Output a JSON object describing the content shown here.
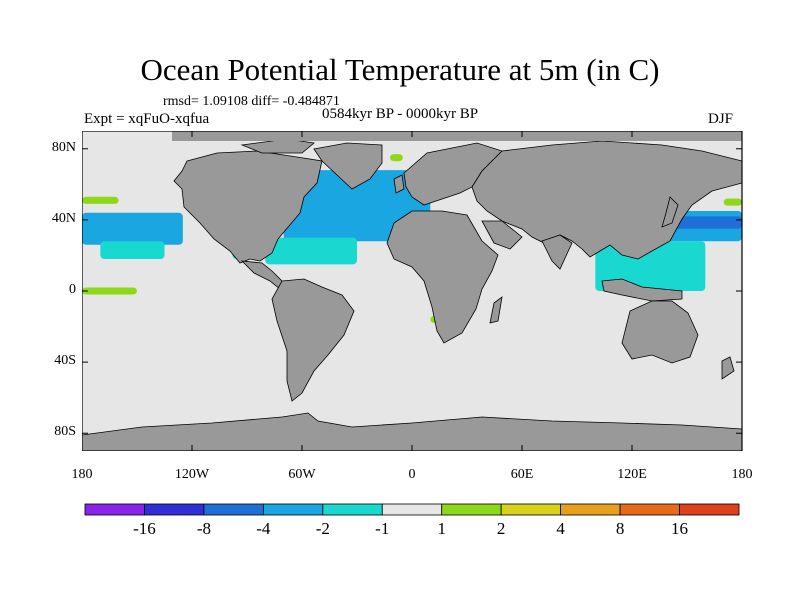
{
  "title": "Ocean Potential Temperature at 5m (in C)",
  "stats": "rmsd= 1.09108 diff= -0.484871",
  "experiment": "Expt = xqFuO-xqfua",
  "period": "0584kyr BP - 0000kyr BP",
  "season": "DJF",
  "chart_data": {
    "type": "heatmap",
    "title": "Ocean Potential Temperature at 5m (in C)",
    "projection": "cylindrical-equidistant",
    "xlim": [
      -180,
      180
    ],
    "ylim": [
      -90,
      90
    ],
    "x_ticks": [
      {
        "lon": -180,
        "label": "180"
      },
      {
        "lon": -120,
        "label": "120W"
      },
      {
        "lon": -60,
        "label": "60W"
      },
      {
        "lon": 0,
        "label": "0"
      },
      {
        "lon": 60,
        "label": "60E"
      },
      {
        "lon": 120,
        "label": "120E"
      },
      {
        "lon": 180,
        "label": "180"
      }
    ],
    "y_ticks": [
      {
        "lat": 80,
        "label": "80N"
      },
      {
        "lat": 40,
        "label": "40N"
      },
      {
        "lat": 0,
        "label": "0"
      },
      {
        "lat": -40,
        "label": "40S"
      },
      {
        "lat": -80,
        "label": "80S"
      }
    ],
    "colorbar": {
      "levels": [
        "-16",
        "-8",
        "-4",
        "-2",
        "-1",
        "1",
        "2",
        "4",
        "8",
        "16"
      ],
      "colors": [
        "#8a22ee",
        "#2f2fd8",
        "#1f6fd8",
        "#1aa6e0",
        "#18d8d0",
        "#e6e6e6",
        "#8ed81a",
        "#d6d21a",
        "#e6a01a",
        "#e66a1a",
        "#e0401a"
      ]
    },
    "ocean_fill": "#e6e6e6",
    "land_fill": "#999999",
    "anomaly_regions": [
      {
        "name": "north-pacific-cold-west",
        "lon": [
          -180,
          -125
        ],
        "lat": [
          26,
          44
        ],
        "color": "#1aa6e0"
      },
      {
        "name": "north-pacific-cold-east",
        "lon": [
          -170,
          -135
        ],
        "lat": [
          18,
          28
        ],
        "color": "#18d8d0"
      },
      {
        "name": "north-atlantic-cold-core",
        "lon": [
          -75,
          -20
        ],
        "lat": [
          36,
          48
        ],
        "color": "#1f6fd8"
      },
      {
        "name": "north-atlantic-cold",
        "lon": [
          -70,
          10
        ],
        "lat": [
          28,
          68
        ],
        "color": "#1aa6e0"
      },
      {
        "name": "subtropical-atlantic-cool",
        "lon": [
          -80,
          -30
        ],
        "lat": [
          15,
          30
        ],
        "color": "#18d8d0"
      },
      {
        "name": "gulf-of-mexico-cool",
        "lon": [
          -98,
          -80
        ],
        "lat": [
          18,
          30
        ],
        "color": "#18d8d0"
      },
      {
        "name": "kuroshio-cold",
        "lon": [
          125,
          180
        ],
        "lat": [
          28,
          45
        ],
        "color": "#1aa6e0"
      },
      {
        "name": "kuroshio-cold-core",
        "lon": [
          140,
          180
        ],
        "lat": [
          35,
          42
        ],
        "color": "#1f6fd8"
      },
      {
        "name": "west-pacific-cool",
        "lon": [
          100,
          160
        ],
        "lat": [
          0,
          28
        ],
        "color": "#18d8d0"
      },
      {
        "name": "equatorial-pacific-warm",
        "lon": [
          -180,
          -150
        ],
        "lat": [
          -2,
          2
        ],
        "color": "#8ed81a"
      },
      {
        "name": "east-pacific-north-warm",
        "lon": [
          -180,
          -160
        ],
        "lat": [
          49,
          53
        ],
        "color": "#8ed81a"
      },
      {
        "name": "east-pacific-north-warm-2",
        "lon": [
          170,
          180
        ],
        "lat": [
          48,
          52
        ],
        "color": "#8ed81a"
      },
      {
        "name": "labrador-warm",
        "lon": [
          -12,
          -5
        ],
        "lat": [
          73,
          77
        ],
        "color": "#8ed81a"
      },
      {
        "name": "southern-ocean-warm",
        "lon": [
          10,
          20
        ],
        "lat": [
          -18,
          -14
        ],
        "color": "#8ed81a"
      }
    ]
  }
}
